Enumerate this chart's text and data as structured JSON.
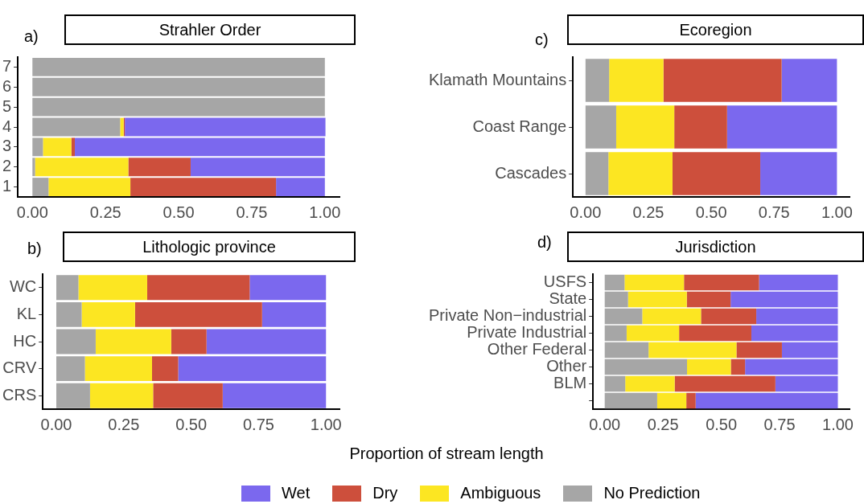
{
  "chart_data": [
    {
      "type": "bar",
      "title": "Strahler Order",
      "orientation": "horizontal",
      "stacked": true,
      "categories": [
        "7",
        "6",
        "5",
        "4",
        "3",
        "2",
        "1"
      ],
      "xlim": [
        -0.05,
        1.05
      ],
      "xticks": [
        {
          "value": 0,
          "label": "0.00"
        },
        {
          "value": 0.25,
          "label": "0.25"
        },
        {
          "value": 0.5,
          "label": "0.50"
        },
        {
          "value": 0.75,
          "label": "0.75"
        },
        {
          "value": 1,
          "label": "1.00"
        }
      ],
      "annotations": [
        "a)"
      ],
      "series": [
        {
          "color": "#a6a6a6",
          "values": [
            1,
            1,
            1,
            0.3,
            0.036,
            0.009,
            0.055
          ]
        },
        {
          "color": "#fce622",
          "values": [
            0,
            0,
            0,
            0.012,
            0.097,
            0.319,
            0.28
          ]
        },
        {
          "color": "#cd4f3c",
          "values": [
            0,
            0,
            0,
            0.004,
            0.012,
            0.213,
            0.498
          ]
        },
        {
          "color": "#7b68ee",
          "values": [
            0,
            0,
            0,
            0.686,
            0.855,
            0.459,
            0.167
          ]
        }
      ]
    },
    {
      "type": "bar",
      "title": "Ecoregion",
      "orientation": "horizontal",
      "stacked": true,
      "categories": [
        "Klamath Mountains",
        "Coast Range",
        "Cascades"
      ],
      "xlim": [
        -0.05,
        1.05
      ],
      "xticks": [
        {
          "value": 0,
          "label": "0.00"
        },
        {
          "value": 0.25,
          "label": "0.25"
        },
        {
          "value": 0.5,
          "label": "0.50"
        },
        {
          "value": 0.75,
          "label": "0.75"
        },
        {
          "value": 1,
          "label": "1.00"
        }
      ],
      "annotations": [
        "c)"
      ],
      "series": [
        {
          "color": "#a6a6a6",
          "values": [
            0.094,
            0.122,
            0.091
          ]
        },
        {
          "color": "#fce622",
          "values": [
            0.216,
            0.231,
            0.255
          ]
        },
        {
          "color": "#cd4f3c",
          "values": [
            0.47,
            0.21,
            0.349
          ]
        },
        {
          "color": "#7b68ee",
          "values": [
            0.22,
            0.437,
            0.305
          ]
        }
      ]
    },
    {
      "type": "bar",
      "title": "Lithologic province",
      "orientation": "horizontal",
      "stacked": true,
      "categories": [
        "WC",
        "KL",
        "HC",
        "CRV",
        "CRS"
      ],
      "xlim": [
        -0.05,
        1.05
      ],
      "xticks": [
        {
          "value": 0,
          "label": "0.00"
        },
        {
          "value": 0.25,
          "label": "0.25"
        },
        {
          "value": 0.5,
          "label": "0.50"
        },
        {
          "value": 0.75,
          "label": "0.75"
        },
        {
          "value": 1,
          "label": "1.00"
        }
      ],
      "annotations": [
        "b)"
      ],
      "series": [
        {
          "color": "#a6a6a6",
          "values": [
            0.082,
            0.094,
            0.146,
            0.106,
            0.125
          ]
        },
        {
          "color": "#fce622",
          "values": [
            0.255,
            0.198,
            0.28,
            0.249,
            0.234
          ]
        },
        {
          "color": "#cd4f3c",
          "values": [
            0.38,
            0.471,
            0.131,
            0.097,
            0.258
          ]
        },
        {
          "color": "#7b68ee",
          "values": [
            0.283,
            0.237,
            0.443,
            0.548,
            0.383
          ]
        }
      ]
    },
    {
      "type": "bar",
      "title": "Jurisdiction",
      "orientation": "horizontal",
      "stacked": true,
      "categories": [
        "USFS",
        "State",
        "Private Non−industrial",
        "Private Industrial",
        "Other Federal",
        "Other",
        "BLM",
        null
      ],
      "xlim": [
        -0.05,
        1.05
      ],
      "xticks": [
        {
          "value": 0,
          "label": "0.00"
        },
        {
          "value": 0.25,
          "label": "0.25"
        },
        {
          "value": 0.5,
          "label": "0.50"
        },
        {
          "value": 0.75,
          "label": "0.75"
        },
        {
          "value": 1,
          "label": "1.00"
        }
      ],
      "annotations": [
        "d)"
      ],
      "xlabel": "Proportion of stream length",
      "legend": "bottom",
      "series": [
        {
          "name": "No Prediction",
          "color": "#a6a6a6",
          "values": [
            0.085,
            0.1,
            0.161,
            0.094,
            0.188,
            0.353,
            0.088,
            0.225
          ]
        },
        {
          "name": "Ambiguous",
          "color": "#fce622",
          "values": [
            0.255,
            0.252,
            0.252,
            0.225,
            0.377,
            0.188,
            0.212,
            0.125
          ]
        },
        {
          "name": "Dry",
          "color": "#cd4f3c",
          "values": [
            0.322,
            0.188,
            0.237,
            0.31,
            0.195,
            0.061,
            0.432,
            0.04
          ]
        },
        {
          "name": "Wet",
          "color": "#7b68ee",
          "values": [
            0.338,
            0.46,
            0.35,
            0.371,
            0.24,
            0.398,
            0.268,
            0.61
          ]
        }
      ]
    }
  ]
}
